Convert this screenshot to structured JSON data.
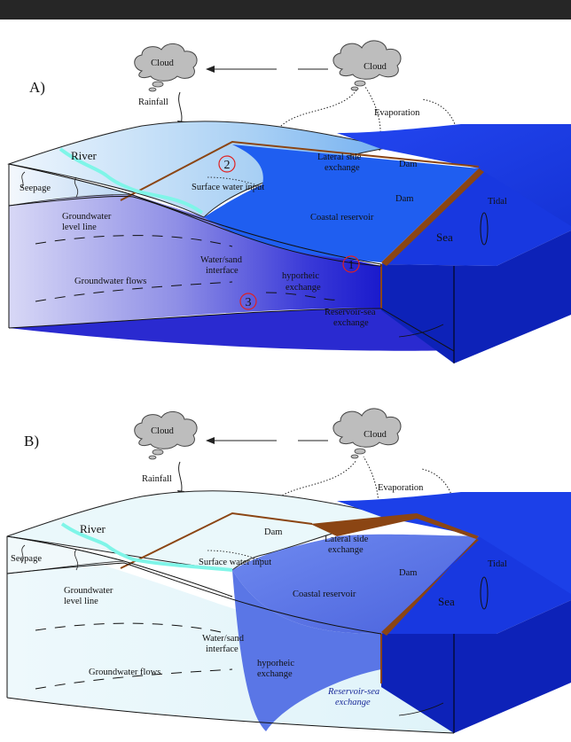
{
  "panels": [
    {
      "id": "A",
      "letter": "A)",
      "labels": {
        "cloud_left": "Cloud",
        "cloud_right": "Cloud",
        "rainfall": "Rainfall",
        "evaporation": "Evaporation",
        "river": "River",
        "seepage": "Seepage",
        "gw_level_1": "Groundwater",
        "gw_level_2": "level line",
        "gw_flows": "Groundwater flows",
        "surface_input": "Surface water input",
        "lateral_1": "Lateral side",
        "lateral_2": "exchange",
        "dam_top": "Dam",
        "dam_mid": "Dam",
        "coastal_reservoir": "Coastal reservoir",
        "tidal": "Tidal",
        "sea": "Sea",
        "water_sand_1": "Water/sand",
        "water_sand_2": "interface",
        "hyporheic_1": "hyporheic",
        "hyporheic_2": "exchange",
        "res_sea_1": "Reservoir-sea",
        "res_sea_2": "exchange",
        "marker_1": "1",
        "marker_2": "2",
        "marker_3": "3"
      }
    },
    {
      "id": "B",
      "letter": "B)",
      "labels": {
        "cloud_left": "Cloud",
        "cloud_right": "Cloud",
        "rainfall": "Rainfall",
        "evaporation": "Evaporation",
        "river": "River",
        "seepage": "Seepage",
        "gw_level_1": "Groundwater",
        "gw_level_2": "level line",
        "gw_flows": "Groundwater flows",
        "surface_input": "Surface water input",
        "lateral_1": "Lateral side",
        "lateral_2": "exchange",
        "dam_top": "Dam",
        "dam_mid": "Dam",
        "coastal_reservoir": "Coastal reservoir",
        "tidal": "Tidal",
        "sea": "Sea",
        "water_sand_1": "Water/sand",
        "water_sand_2": "interface",
        "hyporheic_1": "hyporheic",
        "hyporheic_2": "exchange",
        "res_sea_1": "Reservoir-sea",
        "res_sea_2": "exchange"
      }
    }
  ],
  "colors": {
    "sea_top": "#1a3fe0",
    "sea_side": "#0a1fa8",
    "dam": "#8b4513",
    "river": "#7ff5e8",
    "marker_red": "#e02020",
    "a_reservoir": "#1d5ef0",
    "a_land_top": "#cfe6fb",
    "b_land_top": "#e6f7fb",
    "b_reservoir": "#5f79e8"
  }
}
